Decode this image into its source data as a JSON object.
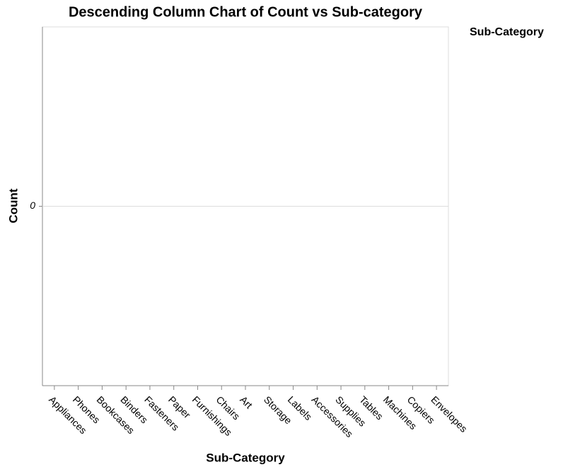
{
  "chart_data": {
    "type": "bar",
    "title": "Descending Column Chart of Count vs Sub-category",
    "x_label": "Sub-Category",
    "y_label": "Count",
    "legend_title": "Sub-Category",
    "categories": [
      "Appliances",
      "Phones",
      "Bookcases",
      "Binders",
      "Fasteners",
      "Paper",
      "Furnishings",
      "Chairs",
      "Art",
      "Storage",
      "Labels",
      "Accessories",
      "Supplies",
      "Tables",
      "Machines",
      "Copiers",
      "Envelopes"
    ],
    "values": [
      0,
      0,
      0,
      0,
      0,
      0,
      0,
      0,
      0,
      0,
      0,
      0,
      0,
      0,
      0,
      0,
      0
    ],
    "color": "#4c78a8",
    "ylim": [
      -1,
      1
    ],
    "yticks": [
      0
    ],
    "grid": true
  }
}
